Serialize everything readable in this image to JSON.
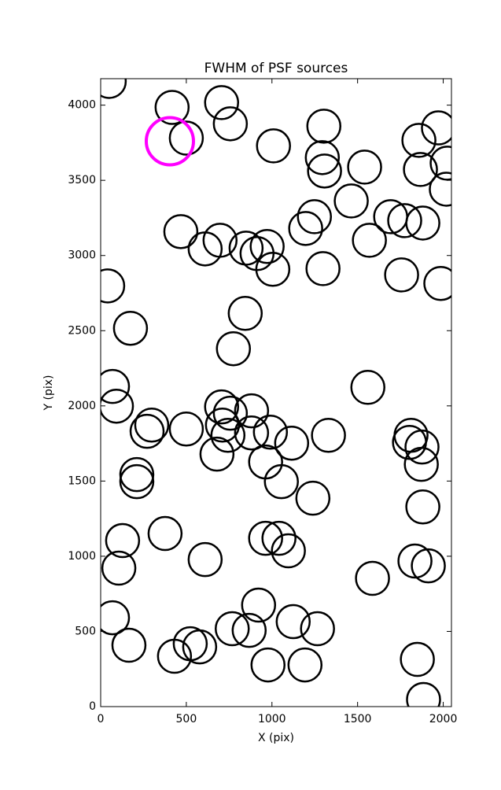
{
  "chart_data": {
    "type": "scatter",
    "title": "FWHM of PSF sources",
    "x_label": "X (pix)",
    "y_label": "Y (pix)",
    "xlim": [
      0,
      2048
    ],
    "ylim": [
      0,
      4176
    ],
    "xticks": [
      0,
      500,
      1000,
      1500,
      2000
    ],
    "yticks": [
      0,
      500,
      1000,
      1500,
      2000,
      2500,
      3000,
      3500,
      4000
    ],
    "series": [
      {
        "color": "#000000",
        "x": [
          50,
          417,
          706,
          757,
          500,
          1009,
          1303,
          1294,
          1307,
          1541,
          1858,
          1972,
          1867,
          2023,
          2018,
          1463,
          1248,
          1197,
          1569,
          1693,
          1775,
          1881,
          468,
          697,
          610,
          849,
          972,
          913,
          1005,
          1298,
          1757,
          1986,
          41,
          844,
          174,
          775,
          1560,
          69,
          92,
          706,
          757,
          881,
          711,
          743,
          881,
          991,
          1115,
          1330,
          298,
          271,
          500,
          679,
          963,
          1055,
          211,
          211,
          1239,
          1812,
          1803,
          1876,
          1872,
          1881,
          376,
          128,
          106,
          610,
          963,
          1041,
          1096,
          1587,
          1835,
          1913,
          69,
          922,
          1124,
          768,
          867,
          1266,
          165,
          523,
          578,
          431,
          977,
          1193,
          1849,
          1885
        ],
        "values": [
          4158,
          3985,
          4017,
          3876,
          3781,
          3729,
          3860,
          3651,
          3562,
          3588,
          3766,
          3849,
          3572,
          3614,
          3441,
          3363,
          3258,
          3180,
          3101,
          3258,
          3232,
          3216,
          3159,
          3101,
          3044,
          3049,
          3060,
          3013,
          2908,
          2913,
          2871,
          2814,
          2798,
          2615,
          2516,
          2380,
          2123,
          2129,
          1998,
          1993,
          1951,
          1967,
          1872,
          1804,
          1820,
          1825,
          1752,
          1804,
          1872,
          1831,
          1846,
          1679,
          1627,
          1496,
          1543,
          1496,
          1386,
          1804,
          1757,
          1726,
          1611,
          1328,
          1151,
          1104,
          921,
          978,
          1119,
          1119,
          1036,
          853,
          968,
          936,
          591,
          675,
          565,
          518,
          507,
          518,
          408,
          418,
          397,
          335,
          277,
          277,
          314,
          47
        ]
      },
      {
        "color": "#ff00ff",
        "x": [
          404
        ],
        "values": [
          3760
        ]
      }
    ]
  }
}
